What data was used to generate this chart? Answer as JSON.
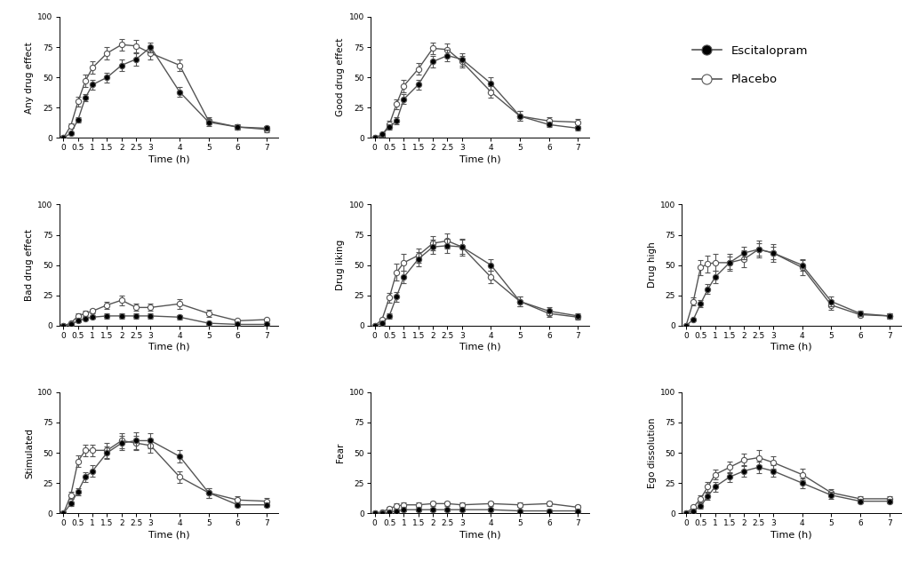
{
  "time": [
    0,
    0.25,
    0.5,
    0.75,
    1,
    1.5,
    2,
    2.5,
    3,
    4,
    5,
    6,
    7
  ],
  "panels": [
    {
      "ylabel": "Any drug effect",
      "escitalopram": [
        0,
        4,
        15,
        33,
        44,
        50,
        60,
        65,
        75,
        38,
        13,
        9,
        8
      ],
      "escitalopram_err": [
        0,
        1,
        2,
        3,
        4,
        4,
        5,
        5,
        4,
        4,
        3,
        2,
        2
      ],
      "placebo": [
        0,
        10,
        30,
        47,
        58,
        70,
        77,
        76,
        70,
        60,
        14,
        9,
        7
      ],
      "placebo_err": [
        0,
        2,
        4,
        5,
        5,
        5,
        5,
        5,
        5,
        5,
        3,
        2,
        2
      ],
      "ylim": [
        0,
        100
      ],
      "yticks": [
        0,
        25,
        50,
        75,
        100
      ]
    },
    {
      "ylabel": "Good drug effect",
      "escitalopram": [
        0,
        3,
        9,
        14,
        32,
        44,
        63,
        68,
        65,
        45,
        18,
        11,
        8
      ],
      "escitalopram_err": [
        0,
        1,
        2,
        3,
        4,
        4,
        5,
        5,
        5,
        5,
        4,
        2,
        2
      ],
      "placebo": [
        0,
        2,
        11,
        28,
        43,
        57,
        74,
        73,
        63,
        38,
        18,
        14,
        13
      ],
      "placebo_err": [
        0,
        1,
        3,
        4,
        5,
        5,
        5,
        5,
        5,
        5,
        4,
        3,
        3
      ],
      "ylim": [
        0,
        100
      ],
      "yticks": [
        0,
        25,
        50,
        75,
        100
      ]
    },
    {
      "ylabel": "Bad drug effect",
      "escitalopram": [
        0,
        1,
        4,
        6,
        7,
        8,
        8,
        8,
        8,
        7,
        2,
        1,
        1
      ],
      "escitalopram_err": [
        0,
        0,
        1,
        1,
        1,
        2,
        2,
        2,
        2,
        2,
        1,
        0,
        0
      ],
      "placebo": [
        0,
        2,
        8,
        10,
        12,
        17,
        21,
        15,
        15,
        18,
        10,
        4,
        5
      ],
      "placebo_err": [
        0,
        1,
        2,
        2,
        2,
        3,
        4,
        3,
        3,
        4,
        3,
        1,
        1
      ],
      "ylim": [
        0,
        100
      ],
      "yticks": [
        0,
        25,
        50,
        75,
        100
      ]
    },
    {
      "ylabel": "Drug liking",
      "escitalopram": [
        0,
        2,
        8,
        24,
        40,
        55,
        65,
        66,
        65,
        50,
        20,
        12,
        8
      ],
      "escitalopram_err": [
        0,
        1,
        2,
        4,
        5,
        6,
        6,
        6,
        6,
        5,
        4,
        3,
        2
      ],
      "placebo": [
        0,
        5,
        23,
        44,
        52,
        58,
        68,
        70,
        65,
        40,
        20,
        10,
        7
      ],
      "placebo_err": [
        0,
        1,
        4,
        7,
        7,
        6,
        6,
        6,
        7,
        5,
        4,
        3,
        2
      ],
      "ylim": [
        0,
        100
      ],
      "yticks": [
        0,
        25,
        50,
        75,
        100
      ]
    },
    {
      "ylabel": "Drug high",
      "escitalopram": [
        0,
        5,
        18,
        30,
        40,
        52,
        60,
        63,
        60,
        50,
        20,
        10,
        8
      ],
      "escitalopram_err": [
        0,
        1,
        3,
        4,
        5,
        5,
        5,
        5,
        5,
        5,
        4,
        2,
        2
      ],
      "placebo": [
        0,
        20,
        48,
        51,
        52,
        52,
        55,
        63,
        60,
        48,
        17,
        9,
        8
      ],
      "placebo_err": [
        0,
        3,
        6,
        7,
        7,
        7,
        7,
        7,
        7,
        6,
        4,
        2,
        2
      ],
      "ylim": [
        0,
        100
      ],
      "yticks": [
        0,
        25,
        50,
        75,
        100
      ]
    },
    {
      "ylabel": "Stimulated",
      "escitalopram": [
        0,
        8,
        18,
        30,
        35,
        50,
        58,
        60,
        60,
        47,
        17,
        7,
        7
      ],
      "escitalopram_err": [
        0,
        2,
        3,
        4,
        5,
        5,
        6,
        7,
        6,
        5,
        4,
        2,
        2
      ],
      "placebo": [
        0,
        15,
        43,
        52,
        52,
        52,
        60,
        58,
        56,
        30,
        17,
        11,
        10
      ],
      "placebo_err": [
        0,
        3,
        5,
        5,
        5,
        6,
        6,
        6,
        6,
        5,
        4,
        3,
        3
      ],
      "ylim": [
        0,
        100
      ],
      "yticks": [
        0,
        25,
        50,
        75,
        100
      ]
    },
    {
      "ylabel": "Fear",
      "escitalopram": [
        0,
        0,
        1,
        2,
        3,
        3,
        3,
        3,
        3,
        3,
        2,
        2,
        2
      ],
      "escitalopram_err": [
        0,
        0,
        0,
        1,
        1,
        1,
        1,
        1,
        1,
        1,
        1,
        1,
        0
      ],
      "placebo": [
        0,
        1,
        4,
        6,
        7,
        7,
        8,
        8,
        7,
        8,
        7,
        8,
        5
      ],
      "placebo_err": [
        0,
        0,
        1,
        2,
        2,
        2,
        2,
        2,
        2,
        2,
        2,
        2,
        2
      ],
      "ylim": [
        0,
        100
      ],
      "yticks": [
        0,
        25,
        50,
        75,
        100
      ]
    },
    {
      "ylabel": "Ego dissolution",
      "escitalopram": [
        0,
        2,
        6,
        14,
        22,
        30,
        35,
        38,
        35,
        25,
        15,
        10,
        10
      ],
      "escitalopram_err": [
        0,
        1,
        2,
        3,
        4,
        4,
        5,
        5,
        5,
        4,
        3,
        2,
        2
      ],
      "placebo": [
        0,
        5,
        12,
        22,
        32,
        38,
        44,
        46,
        42,
        32,
        17,
        12,
        12
      ],
      "placebo_err": [
        0,
        1,
        3,
        4,
        4,
        5,
        5,
        6,
        5,
        5,
        3,
        2,
        2
      ],
      "ylim": [
        0,
        100
      ],
      "yticks": [
        0,
        25,
        50,
        75,
        100
      ]
    }
  ],
  "xticks": [
    0,
    0.5,
    1,
    1.5,
    2,
    2.5,
    3,
    4,
    5,
    6,
    7
  ],
  "xticklabels": [
    "0",
    "0.5",
    "1",
    "1.5",
    "2",
    "2.5",
    "3",
    "4",
    "5",
    "6",
    "7"
  ],
  "xlabel": "Time (h)",
  "line_color": "#555555",
  "esc_face": "#000000",
  "pla_face": "#ffffff",
  "background_color": "#ffffff",
  "legend_escitalopram": "Escitalopram",
  "legend_placebo": "Placebo"
}
